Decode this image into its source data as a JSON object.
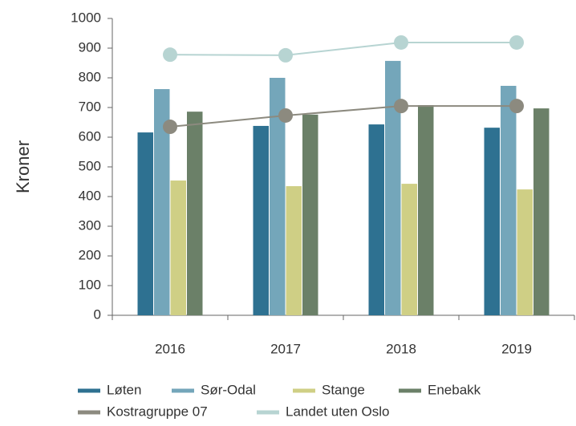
{
  "chart_data": {
    "type": "bar",
    "y_label": "Kroner",
    "categories": [
      "2016",
      "2017",
      "2018",
      "2019"
    ],
    "ylim": [
      0,
      1000
    ],
    "yticks": [
      0,
      100,
      200,
      300,
      400,
      500,
      600,
      700,
      800,
      900,
      1000
    ],
    "series": [
      {
        "name": "Løten",
        "color": "#2e7191",
        "values": [
          616,
          638,
          643,
          632
        ]
      },
      {
        "name": "Sør-Odal",
        "color": "#74a6ba",
        "values": [
          762,
          800,
          857,
          773
        ]
      },
      {
        "name": "Stange",
        "color": "#cfcf85",
        "values": [
          454,
          435,
          443,
          424
        ]
      },
      {
        "name": "Enebakk",
        "color": "#6b8068",
        "values": [
          686,
          676,
          708,
          697
        ]
      },
      {
        "name": "Kostragruppe 07",
        "type": "line",
        "color": "#8c8a7f",
        "values": [
          635,
          673,
          705,
          705
        ]
      },
      {
        "name": "Landet uten Oslo",
        "type": "line",
        "color": "#b7d4d2",
        "values": [
          878,
          876,
          919,
          919
        ]
      }
    ]
  }
}
